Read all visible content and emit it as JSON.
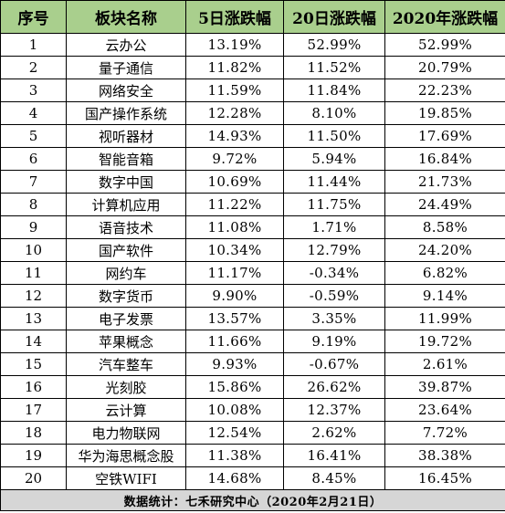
{
  "headers": [
    "序号",
    "板块名称",
    "5日涨跌幅",
    "20日涨跌幅",
    "2020年涨跌幅"
  ],
  "rows": [
    [
      "1",
      "云办公",
      "13.19%",
      "52.99%",
      "52.99%"
    ],
    [
      "2",
      "量子通信",
      "11.82%",
      "11.52%",
      "20.79%"
    ],
    [
      "3",
      "网络安全",
      "11.59%",
      "11.84%",
      "22.23%"
    ],
    [
      "4",
      "国产操作系统",
      "12.28%",
      "8.10%",
      "19.85%"
    ],
    [
      "5",
      "视听器材",
      "14.93%",
      "11.50%",
      "17.69%"
    ],
    [
      "6",
      "智能音箱",
      "9.72%",
      "5.94%",
      "16.84%"
    ],
    [
      "7",
      "数字中国",
      "10.69%",
      "11.44%",
      "21.73%"
    ],
    [
      "8",
      "计算机应用",
      "11.22%",
      "11.75%",
      "24.49%"
    ],
    [
      "9",
      "语音技术",
      "11.08%",
      "1.71%",
      "8.58%"
    ],
    [
      "10",
      "国产软件",
      "10.34%",
      "12.79%",
      "24.20%"
    ],
    [
      "11",
      "网约车",
      "11.17%",
      "-0.34%",
      "6.82%"
    ],
    [
      "12",
      "数字货币",
      "9.90%",
      "-0.59%",
      "9.14%"
    ],
    [
      "13",
      "电子发票",
      "13.57%",
      "3.35%",
      "11.99%"
    ],
    [
      "14",
      "苹果概念",
      "11.66%",
      "9.19%",
      "19.72%"
    ],
    [
      "15",
      "汽车整车",
      "9.93%",
      "-0.67%",
      "2.61%"
    ],
    [
      "16",
      "光刻胶",
      "15.86%",
      "26.62%",
      "39.87%"
    ],
    [
      "17",
      "云计算",
      "10.08%",
      "12.37%",
      "23.64%"
    ],
    [
      "18",
      "电力物联网",
      "12.54%",
      "2.62%",
      "7.72%"
    ],
    [
      "19",
      "华为海思概念股",
      "11.38%",
      "16.41%",
      "38.38%"
    ],
    [
      "20",
      "空铁WIFI",
      "14.68%",
      "8.45%",
      "16.45%"
    ]
  ],
  "footer": "数据统计：七禾研究中心（2020年2月21日）",
  "colors": {
    "header_bg": "#a9cf8d",
    "footer_bg": "#d6d6d6",
    "border": "#000000"
  }
}
